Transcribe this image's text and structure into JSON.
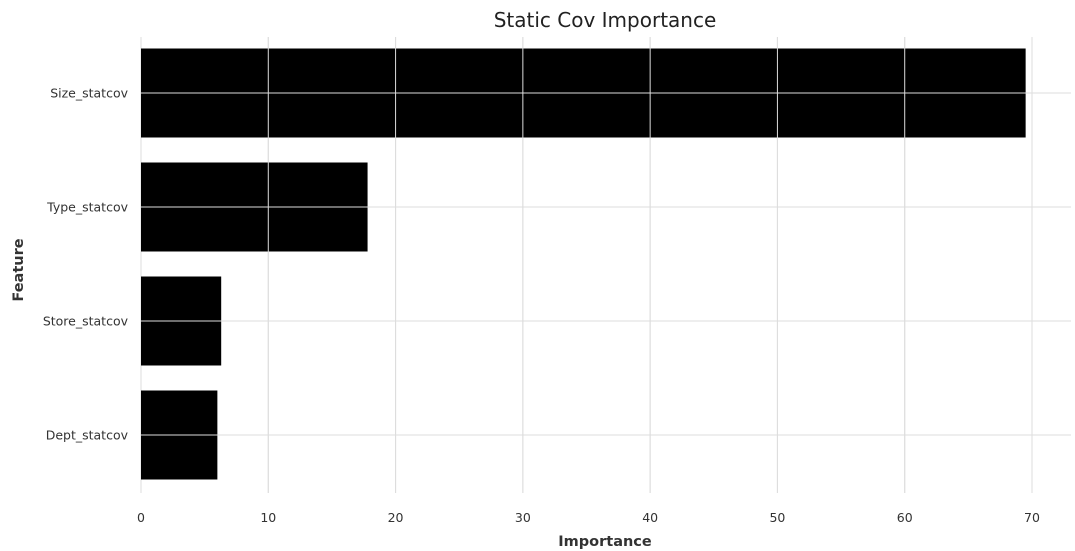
{
  "chart_data": {
    "type": "bar",
    "orientation": "horizontal",
    "title": "Static Cov Importance",
    "xlabel": "Importance",
    "ylabel": "Feature",
    "categories": [
      "Size_statcov",
      "Type_statcov",
      "Store_statcov",
      "Dept_statcov"
    ],
    "values": [
      69.5,
      17.8,
      6.3,
      6.0
    ],
    "xlim": [
      0,
      73
    ],
    "xticks": [
      "0",
      "10",
      "20",
      "30",
      "40",
      "50",
      "60",
      "70"
    ],
    "grid": true,
    "colors": {
      "bar": "#000000",
      "grid": "#dddddd",
      "background": "#ffffff"
    }
  }
}
